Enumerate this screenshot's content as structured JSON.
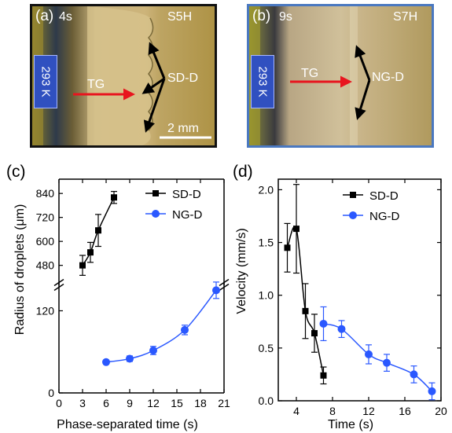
{
  "panel_a": {
    "label": "(a)",
    "time": "4s",
    "sample": "S5H",
    "temperature": "293 K",
    "arrow_label_red": "TG",
    "arrow_label_black": "SD-D",
    "scalebar": "2 mm"
  },
  "panel_b": {
    "label": "(b)",
    "time": "9s",
    "sample": "S7H",
    "temperature": "293 K",
    "arrow_label_red": "TG",
    "arrow_label_black": "NG-D"
  },
  "panel_c_label": "(c)",
  "panel_d_label": "(d)",
  "colors": {
    "sd": "#000000",
    "ng": "#2a58ff",
    "red_arrow": "#e8141e"
  },
  "chart_data": [
    {
      "type": "scatter",
      "xlabel": "Phase-separated time (s)",
      "ylabel": "Radius of droplets (μm)",
      "x_ticks": [
        "0",
        "3",
        "6",
        "9",
        "12",
        "15",
        "18",
        "21"
      ],
      "y_ticks_lower": [
        "0",
        "120"
      ],
      "y_ticks_upper": [
        "480",
        "600",
        "720",
        "840"
      ],
      "xlim": [
        0,
        21
      ],
      "ylim_lower": [
        0,
        155
      ],
      "ylim_upper": [
        400,
        880
      ],
      "axis_break": true,
      "legend_position": "top-right",
      "series": [
        {
          "name": "SD-D",
          "marker": "square",
          "color": "#000000",
          "x": [
            3,
            4,
            5,
            7
          ],
          "y": [
            480,
            545,
            655,
            820
          ],
          "err": [
            50,
            50,
            80,
            30
          ]
        },
        {
          "name": "NG-D",
          "marker": "circle",
          "color": "#2a58ff",
          "x": [
            6,
            9,
            12,
            16,
            20
          ],
          "y": [
            45,
            50,
            62,
            92,
            150
          ],
          "err": [
            3,
            4,
            6,
            7,
            12
          ]
        }
      ]
    },
    {
      "type": "line",
      "xlabel": "Time (s)",
      "ylabel": "Velocity (mm/s)",
      "x_ticks": [
        "4",
        "8",
        "12",
        "16",
        "20"
      ],
      "y_ticks": [
        "0.0",
        "0.5",
        "1.0",
        "1.5",
        "2.0"
      ],
      "xlim": [
        2,
        20
      ],
      "ylim": [
        0,
        2.1
      ],
      "legend_position": "top-right",
      "series": [
        {
          "name": "SD-D",
          "marker": "square",
          "color": "#000000",
          "x": [
            3,
            4,
            5,
            6,
            7
          ],
          "y": [
            1.45,
            1.63,
            0.85,
            0.64,
            0.24
          ],
          "err": [
            0.23,
            0.42,
            0.26,
            0.18,
            0.08
          ]
        },
        {
          "name": "NG-D",
          "marker": "circle",
          "color": "#2a58ff",
          "x": [
            7,
            9,
            12,
            14,
            17,
            19
          ],
          "y": [
            0.73,
            0.68,
            0.44,
            0.36,
            0.25,
            0.09
          ],
          "err": [
            0.16,
            0.08,
            0.09,
            0.08,
            0.08,
            0.08
          ]
        }
      ]
    }
  ]
}
